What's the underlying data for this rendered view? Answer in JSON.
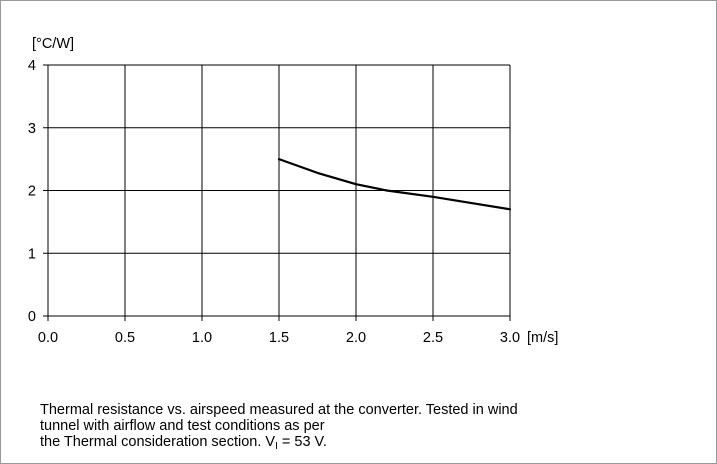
{
  "chart_data": {
    "type": "line",
    "title": "",
    "ylabel": "[°C/W]",
    "xlabel": "[m/s]",
    "xlim": [
      0,
      3
    ],
    "ylim": [
      0,
      4
    ],
    "x_ticks": [
      "0.0",
      "0.5",
      "1.0",
      "1.5",
      "2.0",
      "2.5",
      "3.0"
    ],
    "y_ticks": [
      "0",
      "1",
      "2",
      "3",
      "4"
    ],
    "grid": true,
    "series": [
      {
        "color": "#000000",
        "x": [
          1.5,
          1.75,
          2.0,
          2.2,
          2.5,
          2.75,
          3.0
        ],
        "y": [
          2.5,
          2.28,
          2.1,
          2.0,
          1.9,
          1.8,
          1.7
        ]
      }
    ]
  },
  "caption": {
    "line1": "Thermal resistance vs. airspeed measured at the converter. Tested in wind",
    "line2": "tunnel with airflow and test conditions as per",
    "line3_prefix": "the Thermal consideration section. V",
    "line3_sub": "I",
    "line3_suffix": " = 53 V."
  }
}
